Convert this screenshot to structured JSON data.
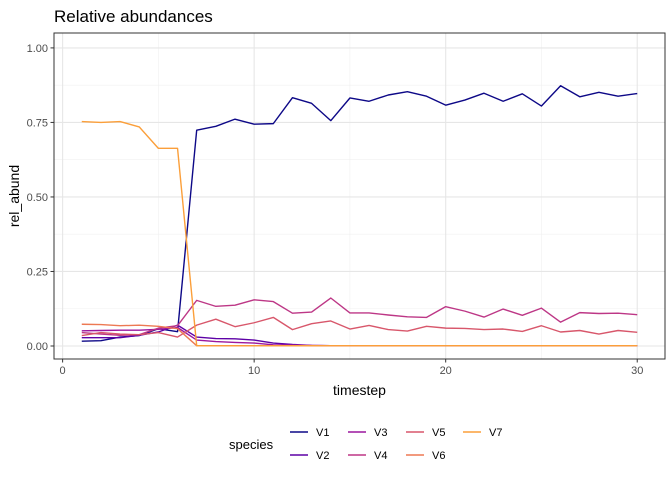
{
  "chart_data": {
    "type": "line",
    "title": "Relative abundances",
    "xlabel": "timestep",
    "ylabel": "rel_abund",
    "xlim": [
      -0.45,
      31.45
    ],
    "ylim": [
      -0.0436,
      1.05
    ],
    "x_ticks": [
      0,
      10,
      20,
      30
    ],
    "x_tick_labels": [
      "0",
      "10",
      "20",
      "30"
    ],
    "y_ticks": [
      0,
      0.25,
      0.5,
      0.75,
      1
    ],
    "y_tick_labels": [
      "0.00",
      "0.25",
      "0.50",
      "0.75",
      "1.00"
    ],
    "grid": true,
    "theme": "bw",
    "legend": {
      "title": "species",
      "position": "bottom"
    },
    "x": [
      1,
      2,
      3,
      4,
      5,
      6,
      7,
      8,
      9,
      10,
      11,
      12,
      13,
      14,
      15,
      16,
      17,
      18,
      19,
      20,
      21,
      22,
      23,
      24,
      25,
      26,
      27,
      28,
      29,
      30
    ],
    "series": [
      {
        "name": "V1",
        "color": "#0d0887",
        "values": [
          0.016,
          0.018,
          0.03,
          0.035,
          0.058,
          0.048,
          0.724,
          0.737,
          0.761,
          0.744,
          0.746,
          0.833,
          0.814,
          0.756,
          0.832,
          0.821,
          0.842,
          0.853,
          0.838,
          0.808,
          0.825,
          0.848,
          0.821,
          0.846,
          0.805,
          0.873,
          0.836,
          0.851,
          0.838,
          0.847
        ]
      },
      {
        "name": "V2",
        "color": "#5d01a6",
        "values": [
          0.028,
          0.028,
          0.028,
          0.036,
          0.047,
          0.07,
          0.03,
          0.025,
          0.024,
          0.02,
          0.01,
          0.005,
          0.002,
          0.001,
          0.001,
          0.001,
          0.001,
          0.001,
          0.001,
          0.001,
          0.001,
          0.001,
          0.001,
          0.001,
          0.001,
          0.001,
          0.001,
          0.001,
          0.001,
          0.001
        ]
      },
      {
        "name": "V3",
        "color": "#9c179e",
        "values": [
          0.051,
          0.052,
          0.053,
          0.053,
          0.056,
          0.062,
          0.02,
          0.015,
          0.012,
          0.01,
          0.004,
          0.003,
          0.002,
          0.001,
          0.001,
          0.001,
          0.001,
          0.001,
          0.001,
          0.001,
          0.001,
          0.001,
          0.001,
          0.001,
          0.001,
          0.001,
          0.001,
          0.001,
          0.001,
          0.001
        ]
      },
      {
        "name": "V4",
        "color": "#bd3786",
        "values": [
          0.045,
          0.04,
          0.036,
          0.038,
          0.06,
          0.068,
          0.153,
          0.133,
          0.137,
          0.155,
          0.149,
          0.11,
          0.114,
          0.161,
          0.111,
          0.111,
          0.104,
          0.098,
          0.096,
          0.132,
          0.117,
          0.097,
          0.124,
          0.103,
          0.127,
          0.08,
          0.112,
          0.109,
          0.11,
          0.105
        ]
      },
      {
        "name": "V5",
        "color": "#d8576b",
        "values": [
          0.035,
          0.045,
          0.04,
          0.038,
          0.045,
          0.03,
          0.07,
          0.09,
          0.065,
          0.078,
          0.096,
          0.055,
          0.075,
          0.084,
          0.057,
          0.069,
          0.055,
          0.05,
          0.066,
          0.06,
          0.059,
          0.055,
          0.057,
          0.049,
          0.068,
          0.047,
          0.052,
          0.04,
          0.052,
          0.046
        ]
      },
      {
        "name": "V6",
        "color": "#ed7953",
        "values": [
          0.073,
          0.072,
          0.068,
          0.07,
          0.066,
          0.058,
          0.001,
          0.001,
          0.001,
          0.001,
          0.001,
          0.001,
          0.001,
          0.001,
          0.001,
          0.001,
          0.001,
          0.001,
          0.001,
          0.001,
          0.001,
          0.001,
          0.001,
          0.001,
          0.001,
          0.001,
          0.001,
          0.001,
          0.001,
          0.001
        ]
      },
      {
        "name": "V7",
        "color": "#fb9f3a",
        "values": [
          0.753,
          0.75,
          0.753,
          0.735,
          0.663,
          0.663,
          0.001,
          0.001,
          0.001,
          0.001,
          0.001,
          0.001,
          0.001,
          0.001,
          0.001,
          0.001,
          0.001,
          0.001,
          0.001,
          0.001,
          0.001,
          0.001,
          0.001,
          0.001,
          0.001,
          0.001,
          0.001,
          0.001,
          0.001,
          0.001
        ]
      }
    ]
  }
}
